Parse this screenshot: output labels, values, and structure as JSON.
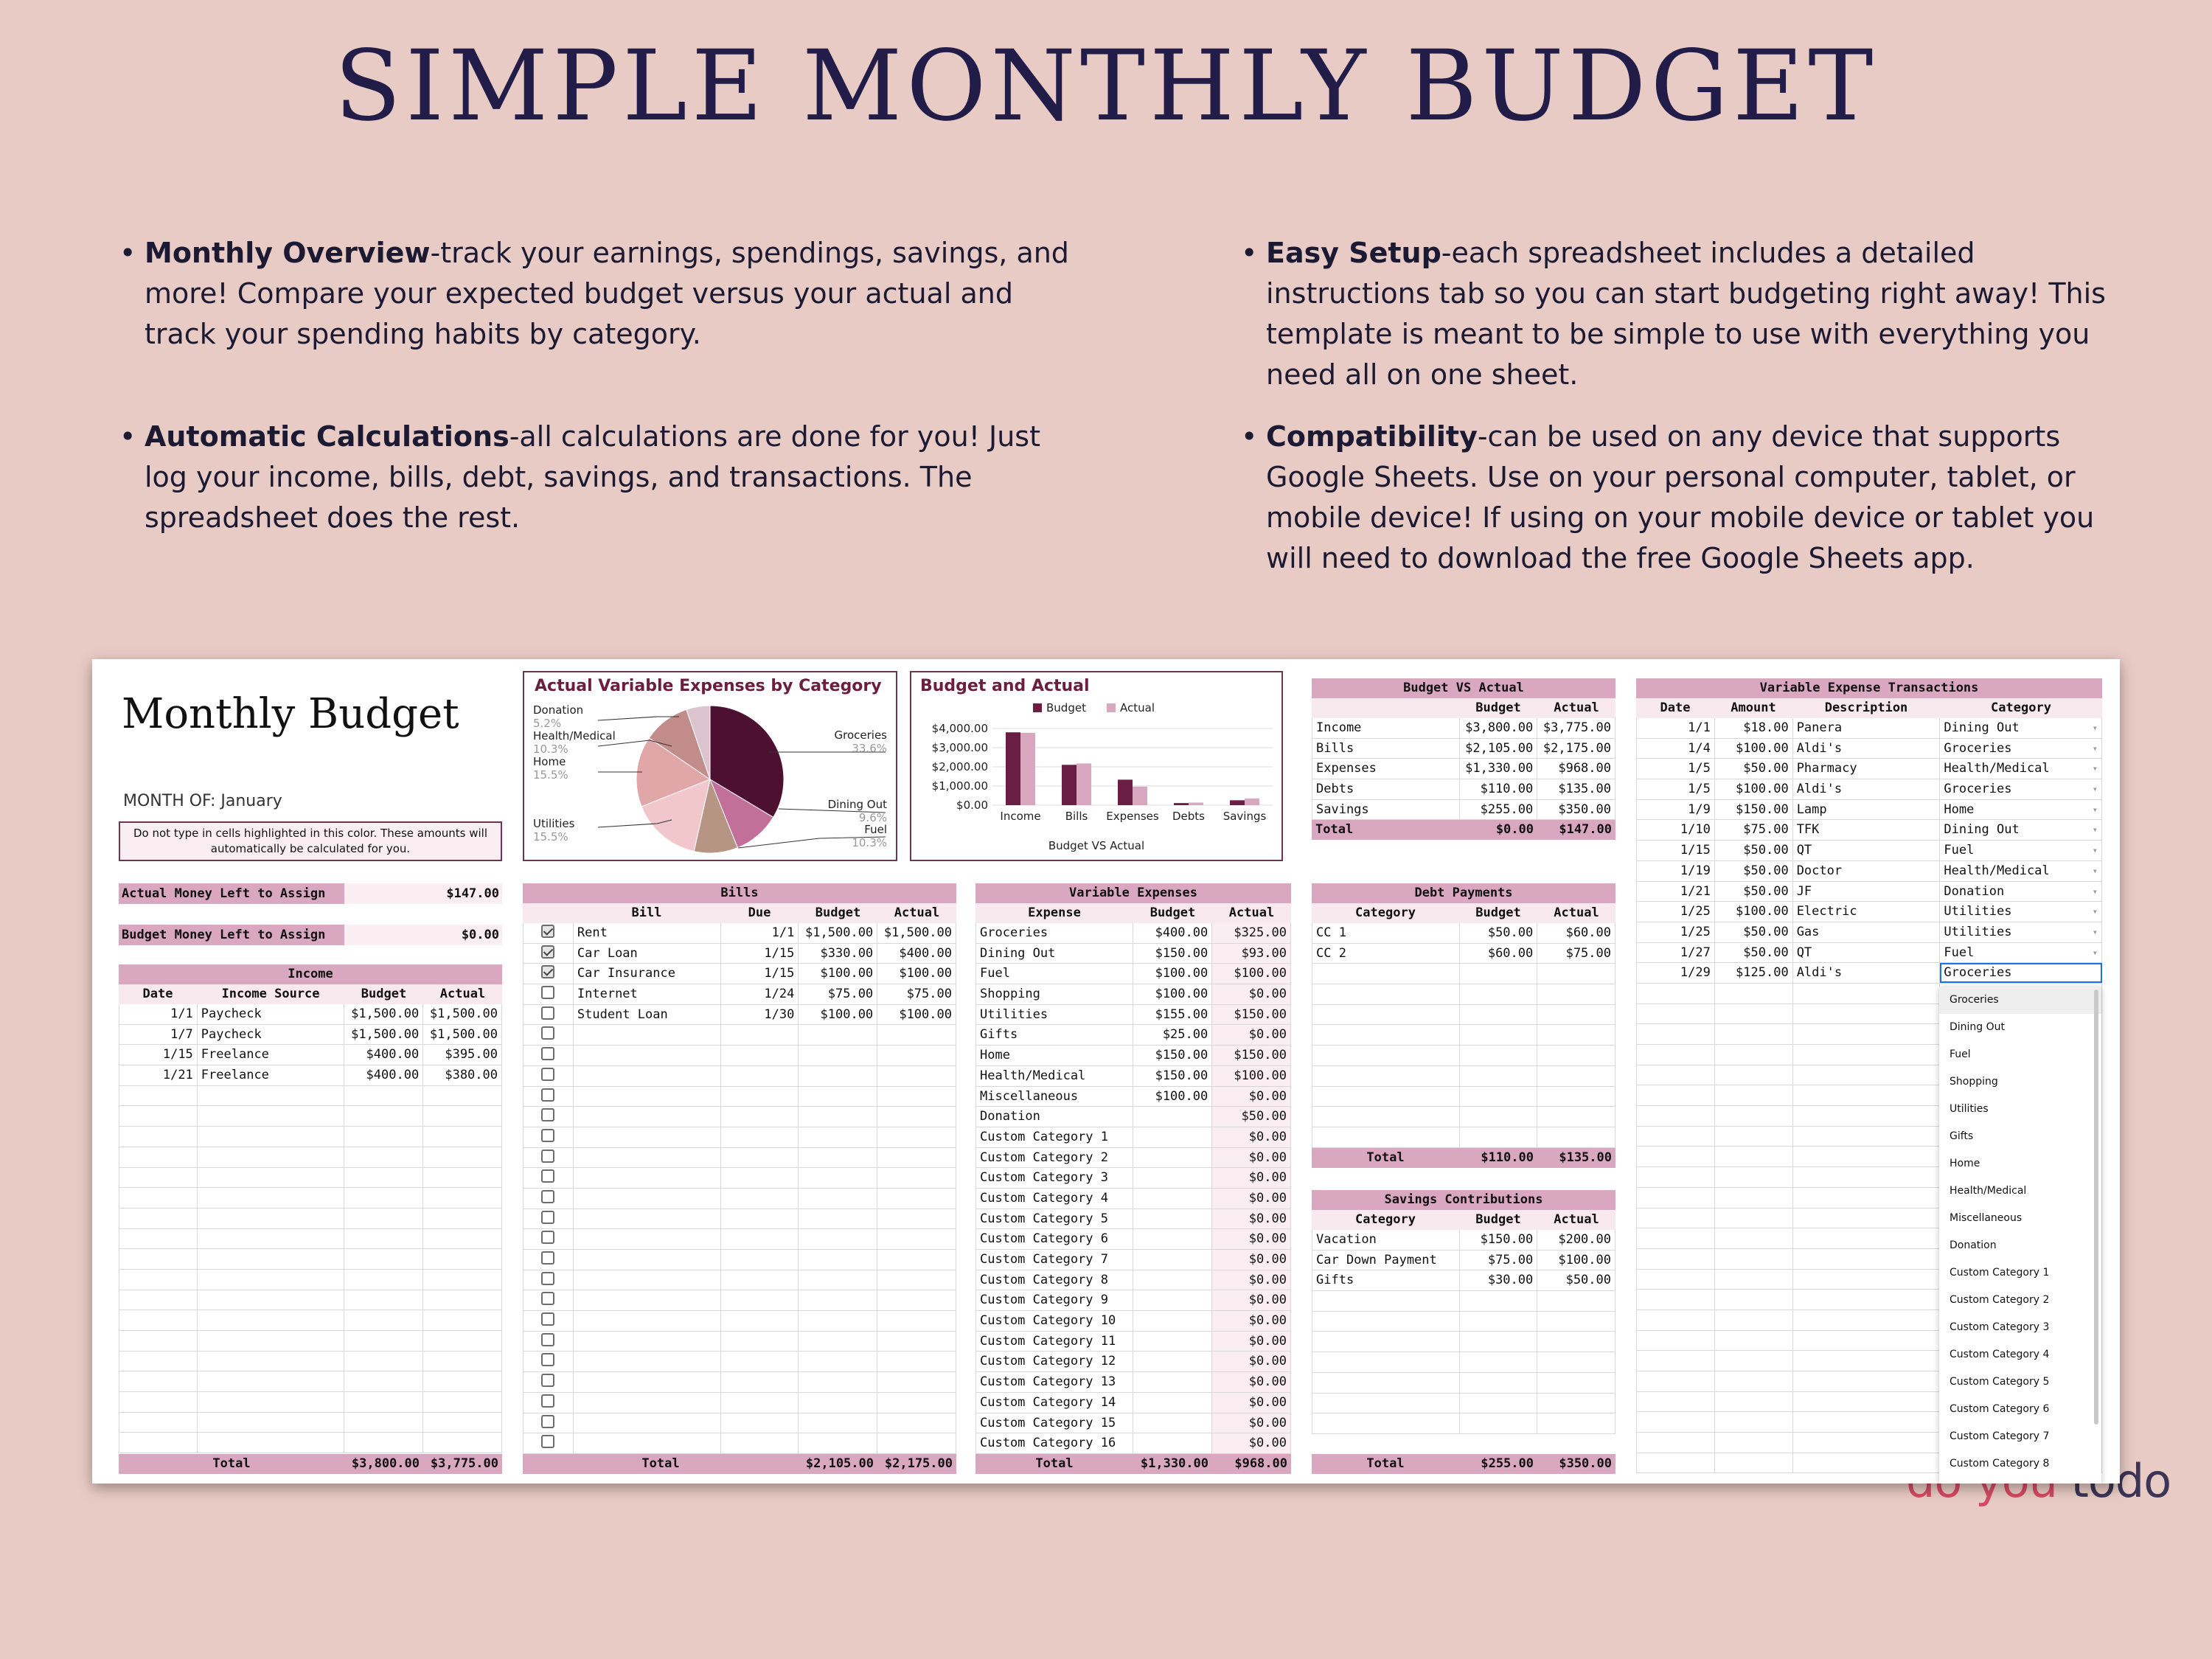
{
  "page_title": "SIMPLE MONTHLY BUDGET",
  "features": [
    {
      "bold": "Monthly Overview",
      "text": "-track your earnings, spendings, savings, and more! Compare your expected budget versus your actual and track your spending habits by category."
    },
    {
      "bold": "Automatic Calculations",
      "text": "-all calculations are done for you! Just log your income, bills, debt, savings, and transactions. The spreadsheet does the rest."
    },
    {
      "bold": "Easy Setup",
      "text": "-each spreadsheet includes a detailed instructions tab so you can start budgeting right away! This template is meant to be simple to use with everything you need all on one sheet."
    },
    {
      "bold": "Compatibility",
      "text": "-can be used on any device that supports Google Sheets. Use on your personal computer, tablet, or mobile device! If using on your mobile device or tablet you will need to download the free Google Sheets app."
    }
  ],
  "bullet": "•",
  "brand": {
    "part1": "do you ",
    "part2": "todo"
  },
  "sheet": {
    "title": "Monthly Budget",
    "month_label": "MONTH OF: January",
    "note": "Do not type in cells highlighted in this color. These amounts will automatically be calculated for you.",
    "actual_left": {
      "label": "Actual Money Left to Assign",
      "value": "$147.00"
    },
    "budget_left": {
      "label": "Budget Money Left to Assign",
      "value": "$0.00"
    },
    "income": {
      "title": "Income",
      "headers": [
        "Date",
        "Income Source",
        "Budget",
        "Actual"
      ],
      "rows": [
        [
          "1/1",
          "Paycheck",
          "$1,500.00",
          "$1,500.00"
        ],
        [
          "1/7",
          "Paycheck",
          "$1,500.00",
          "$1,500.00"
        ],
        [
          "1/15",
          "Freelance",
          "$400.00",
          "$395.00"
        ],
        [
          "1/21",
          "Freelance",
          "$400.00",
          "$380.00"
        ]
      ],
      "total": [
        "Total",
        "$3,800.00",
        "$3,775.00"
      ]
    },
    "bills": {
      "title": "Bills",
      "headers": [
        "Bill",
        "Due",
        "Budget",
        "Actual"
      ],
      "rows": [
        {
          "checked": true,
          "cells": [
            "Rent",
            "1/1",
            "$1,500.00",
            "$1,500.00"
          ]
        },
        {
          "checked": true,
          "cells": [
            "Car Loan",
            "1/15",
            "$330.00",
            "$400.00"
          ]
        },
        {
          "checked": true,
          "cells": [
            "Car Insurance",
            "1/15",
            "$100.00",
            "$100.00"
          ]
        },
        {
          "checked": false,
          "cells": [
            "Internet",
            "1/24",
            "$75.00",
            "$75.00"
          ]
        },
        {
          "checked": false,
          "cells": [
            "Student Loan",
            "1/30",
            "$100.00",
            "$100.00"
          ]
        }
      ],
      "total": [
        "Total",
        "$2,105.00",
        "$2,175.00"
      ]
    },
    "variable": {
      "title": "Variable Expenses",
      "headers": [
        "Expense",
        "Budget",
        "Actual"
      ],
      "rows": [
        [
          "Groceries",
          "$400.00",
          "$325.00"
        ],
        [
          "Dining Out",
          "$150.00",
          "$93.00"
        ],
        [
          "Fuel",
          "$100.00",
          "$100.00"
        ],
        [
          "Shopping",
          "$100.00",
          "$0.00"
        ],
        [
          "Utilities",
          "$155.00",
          "$150.00"
        ],
        [
          "Gifts",
          "$25.00",
          "$0.00"
        ],
        [
          "Home",
          "$150.00",
          "$150.00"
        ],
        [
          "Health/Medical",
          "$150.00",
          "$100.00"
        ],
        [
          "Miscellaneous",
          "$100.00",
          "$0.00"
        ],
        [
          "Donation",
          "",
          "$50.00"
        ],
        [
          "Custom Category 1",
          "",
          "$0.00"
        ],
        [
          "Custom Category 2",
          "",
          "$0.00"
        ],
        [
          "Custom Category 3",
          "",
          "$0.00"
        ],
        [
          "Custom Category 4",
          "",
          "$0.00"
        ],
        [
          "Custom Category 5",
          "",
          "$0.00"
        ],
        [
          "Custom Category 6",
          "",
          "$0.00"
        ],
        [
          "Custom Category 7",
          "",
          "$0.00"
        ],
        [
          "Custom Category 8",
          "",
          "$0.00"
        ],
        [
          "Custom Category 9",
          "",
          "$0.00"
        ],
        [
          "Custom Category 10",
          "",
          "$0.00"
        ],
        [
          "Custom Category 11",
          "",
          "$0.00"
        ],
        [
          "Custom Category 12",
          "",
          "$0.00"
        ],
        [
          "Custom Category 13",
          "",
          "$0.00"
        ],
        [
          "Custom Category 14",
          "",
          "$0.00"
        ],
        [
          "Custom Category 15",
          "",
          "$0.00"
        ],
        [
          "Custom Category 16",
          "",
          "$0.00"
        ]
      ],
      "total": [
        "Total",
        "$1,330.00",
        "$968.00"
      ]
    },
    "bva": {
      "title": "Budget VS Actual",
      "headers": [
        "",
        "Budget",
        "Actual"
      ],
      "rows": [
        [
          "Income",
          "$3,800.00",
          "$3,775.00"
        ],
        [
          "Bills",
          "$2,105.00",
          "$2,175.00"
        ],
        [
          "Expenses",
          "$1,330.00",
          "$968.00"
        ],
        [
          "Debts",
          "$110.00",
          "$135.00"
        ],
        [
          "Savings",
          "$255.00",
          "$350.00"
        ]
      ],
      "total": [
        "Total",
        "$0.00",
        "$147.00"
      ]
    },
    "debt": {
      "title": "Debt Payments",
      "headers": [
        "Category",
        "Budget",
        "Actual"
      ],
      "rows": [
        [
          "CC 1",
          "$50.00",
          "$60.00"
        ],
        [
          "CC 2",
          "$60.00",
          "$75.00"
        ]
      ],
      "total": [
        "Total",
        "$110.00",
        "$135.00"
      ]
    },
    "savings": {
      "title": "Savings Contributions",
      "headers": [
        "Category",
        "Budget",
        "Actual"
      ],
      "rows": [
        [
          "Vacation",
          "$150.00",
          "$200.00"
        ],
        [
          "Car Down Payment",
          "$75.00",
          "$100.00"
        ],
        [
          "Gifts",
          "$30.00",
          "$50.00"
        ]
      ],
      "total": [
        "Total",
        "$255.00",
        "$350.00"
      ]
    },
    "transactions": {
      "title": "Variable Expense Transactions",
      "headers": [
        "Date",
        "Amount",
        "Description",
        "Category"
      ],
      "rows": [
        [
          "1/1",
          "$18.00",
          "Panera",
          "Dining Out"
        ],
        [
          "1/4",
          "$100.00",
          "Aldi's",
          "Groceries"
        ],
        [
          "1/5",
          "$50.00",
          "Pharmacy",
          "Health/Medical"
        ],
        [
          "1/5",
          "$100.00",
          "Aldi's",
          "Groceries"
        ],
        [
          "1/9",
          "$150.00",
          "Lamp",
          "Home"
        ],
        [
          "1/10",
          "$75.00",
          "TFK",
          "Dining Out"
        ],
        [
          "1/15",
          "$50.00",
          "QT",
          "Fuel"
        ],
        [
          "1/19",
          "$50.00",
          "Doctor",
          "Health/Medical"
        ],
        [
          "1/21",
          "$50.00",
          "JF",
          "Donation"
        ],
        [
          "1/25",
          "$100.00",
          "Electric",
          "Utilities"
        ],
        [
          "1/25",
          "$50.00",
          "Gas",
          "Utilities"
        ],
        [
          "1/27",
          "$50.00",
          "QT",
          "Fuel"
        ],
        [
          "1/29",
          "$125.00",
          "Aldi's",
          "Groceries"
        ]
      ],
      "dropdown_arrow": "▾",
      "menu_options": [
        "Groceries",
        "Dining Out",
        "Fuel",
        "Shopping",
        "Utilities",
        "Gifts",
        "Home",
        "Health/Medical",
        "Miscellaneous",
        "Donation",
        "Custom Category 1",
        "Custom Category 2",
        "Custom Category 3",
        "Custom Category 4",
        "Custom Category 5",
        "Custom Category 6",
        "Custom Category 7",
        "Custom Category 8"
      ]
    }
  },
  "colors": {
    "dark_plum": "#5a1537",
    "pink_header": "#d9a7c0",
    "light_pink": "#fbeef3",
    "background": "#e8cbc4"
  },
  "chart_data": [
    {
      "type": "pie",
      "title": "Actual Variable Expenses by Category",
      "slices": [
        {
          "label": "Groceries",
          "value": 33.6,
          "color": "#4d1030"
        },
        {
          "label": "Fuel",
          "value": 10.3,
          "color": "#c2709a"
        },
        {
          "label": "Dining Out",
          "value": 9.6,
          "color": "#b69584"
        },
        {
          "label": "Utilities",
          "value": 15.5,
          "color": "#f1c7cb"
        },
        {
          "label": "Home",
          "value": 15.5,
          "color": "#e1a6a8"
        },
        {
          "label": "Health/Medical",
          "value": 10.3,
          "color": "#c18c89"
        },
        {
          "label": "Donation",
          "value": 5.2,
          "color": "#dbc4cd"
        }
      ],
      "pct_labels": [
        "33.6%",
        "10.3%",
        "9.6%",
        "15.5%",
        "15.5%",
        "10.3%",
        "5.2%"
      ]
    },
    {
      "type": "bar",
      "title": "Budget and Actual",
      "xlabel": "Budget VS Actual",
      "categories": [
        "Income",
        "Bills",
        "Expenses",
        "Debts",
        "Savings"
      ],
      "series": [
        {
          "name": "Budget",
          "values": [
            3800,
            2105,
            1330,
            110,
            255
          ],
          "color": "#6b1e45"
        },
        {
          "name": "Actual",
          "values": [
            3775,
            2175,
            968,
            135,
            350
          ],
          "color": "#d9a7c0"
        }
      ],
      "ylim": [
        0,
        4000
      ],
      "yticks": [
        "$0.00",
        "$1,000.00",
        "$2,000.00",
        "$3,000.00",
        "$4,000.00"
      ],
      "grid": true,
      "legend": "top"
    }
  ]
}
